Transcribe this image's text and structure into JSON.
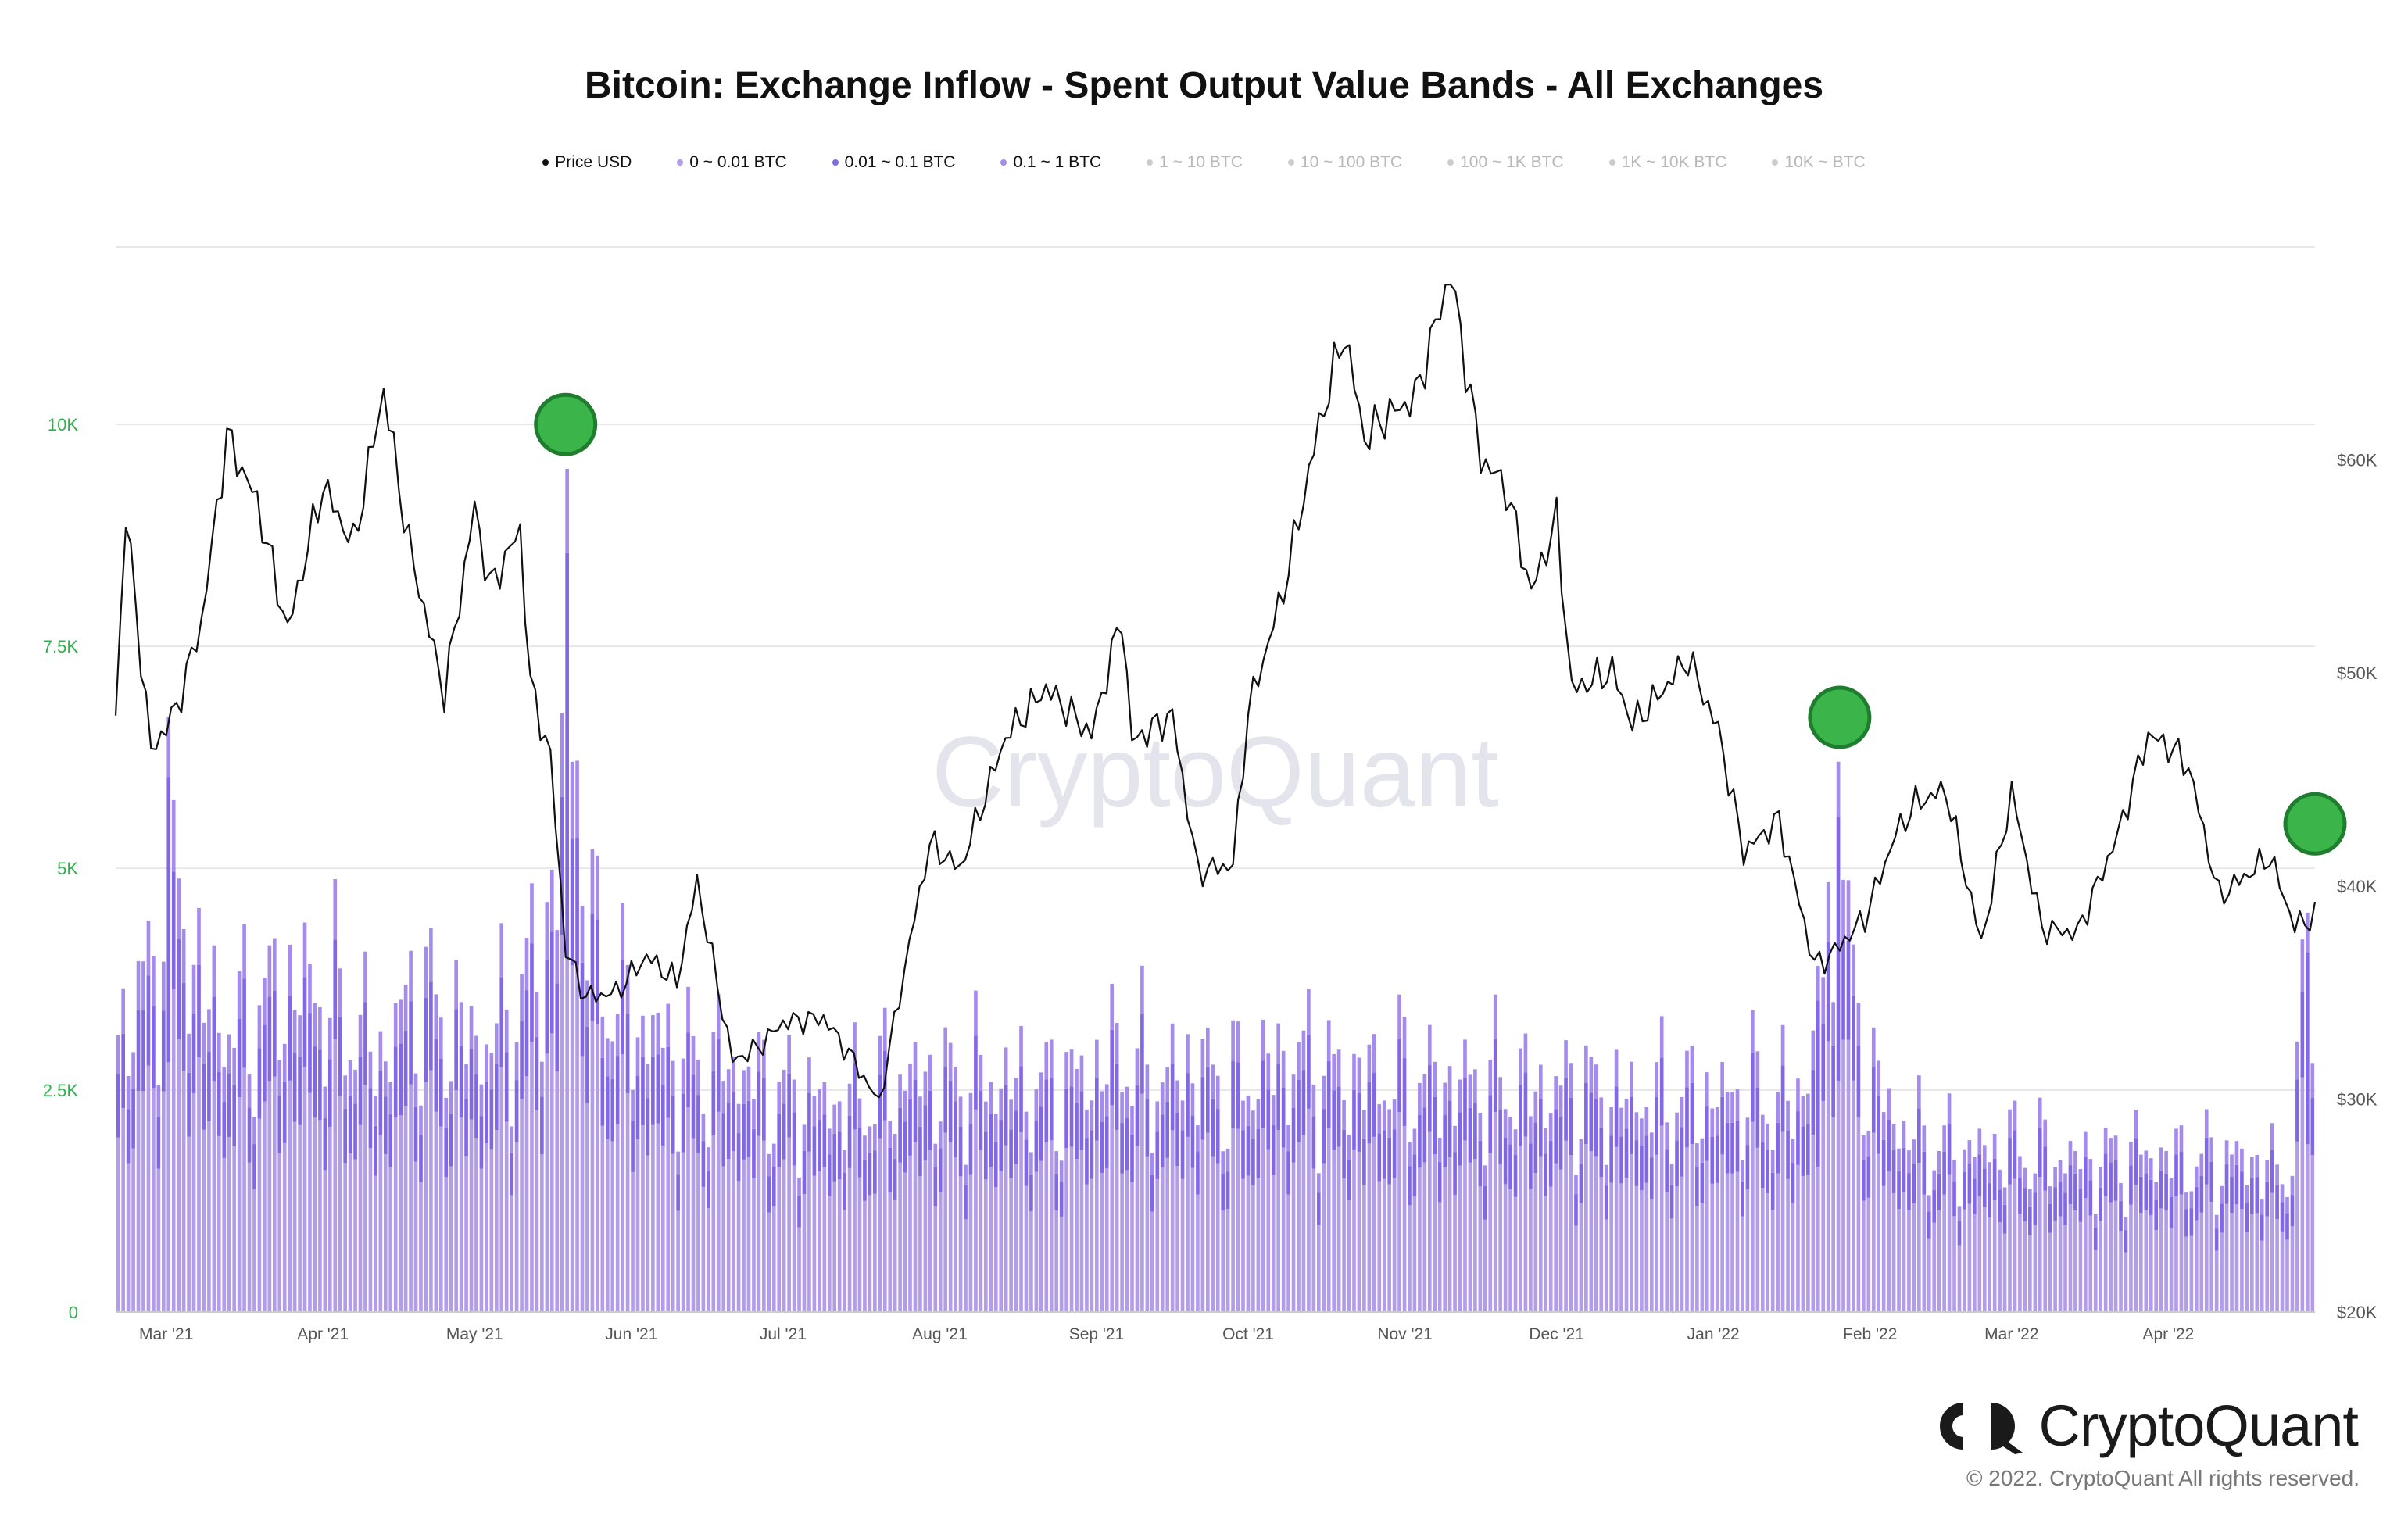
{
  "title": "Bitcoin: Exchange Inflow - Spent Output Value Bands - All Exchanges",
  "brand": {
    "name": "CryptoQuant",
    "watermark": "CryptoQuant",
    "copyright": "© 2022. CryptoQuant All rights reserved.",
    "logo_icon": "cryptoquant-logo-icon"
  },
  "colors": {
    "band_0": "#b39ce8",
    "band_1": "#8267e6",
    "band_2": "#a58bed",
    "price": "#111111",
    "left_axis": "#2fb24c",
    "right_axis": "#555555",
    "marker": "#3bb54a",
    "marker_stroke": "#1e7d2e",
    "grid": "#e8e8e8",
    "inactive": "#b8b8b8"
  },
  "legend": [
    {
      "label": "Price USD",
      "color": "#111111",
      "active": true
    },
    {
      "label": "0 ~ 0.01 BTC",
      "color": "#b39ce8",
      "active": true
    },
    {
      "label": "0.01 ~ 0.1 BTC",
      "color": "#8267e6",
      "active": true
    },
    {
      "label": "0.1 ~ 1 BTC",
      "color": "#a58bed",
      "active": true
    },
    {
      "label": "1 ~ 10 BTC",
      "color": "#c8c8c8",
      "active": false
    },
    {
      "label": "10 ~ 100 BTC",
      "color": "#c8c8c8",
      "active": false
    },
    {
      "label": "100 ~ 1K BTC",
      "color": "#c8c8c8",
      "active": false
    },
    {
      "label": "1K ~ 10K BTC",
      "color": "#c8c8c8",
      "active": false
    },
    {
      "label": "10K ~ BTC",
      "color": "#c8c8c8",
      "active": false
    }
  ],
  "chart_data": {
    "type": "bar",
    "stacked": true,
    "grid": true,
    "legend_position": "top-center",
    "x_range": [
      "2021-02-19",
      "2022-04-30"
    ],
    "x_ticks": [
      {
        "date": "2021-03-01",
        "label": "Mar '21"
      },
      {
        "date": "2021-04-01",
        "label": "Apr '21"
      },
      {
        "date": "2021-05-01",
        "label": "May '21"
      },
      {
        "date": "2021-06-01",
        "label": "Jun '21"
      },
      {
        "date": "2021-07-01",
        "label": "Jul '21"
      },
      {
        "date": "2021-08-01",
        "label": "Aug '21"
      },
      {
        "date": "2021-09-01",
        "label": "Sep '21"
      },
      {
        "date": "2021-10-01",
        "label": "Oct '21"
      },
      {
        "date": "2021-11-01",
        "label": "Nov '21"
      },
      {
        "date": "2021-12-01",
        "label": "Dec '21"
      },
      {
        "date": "2022-01-01",
        "label": "Jan '22"
      },
      {
        "date": "2022-02-01",
        "label": "Feb '22"
      },
      {
        "date": "2022-03-01",
        "label": "Mar '22"
      },
      {
        "date": "2022-04-01",
        "label": "Apr '22"
      }
    ],
    "y_left": {
      "range": [
        0,
        12000
      ],
      "ticks": [
        0,
        2500,
        5000,
        7500,
        10000
      ],
      "labels": [
        "0",
        "2.5K",
        "5K",
        "7.5K",
        "10K"
      ]
    },
    "y_right": {
      "range": [
        20000,
        70000
      ],
      "ticks": [
        20000,
        30000,
        40000,
        50000,
        60000
      ],
      "labels": [
        "$20K",
        "$30K",
        "$40K",
        "$50K",
        "$60K"
      ]
    },
    "bar_series": [
      "0 ~ 0.01 BTC",
      "0.01 ~ 0.1 BTC",
      "0.1 ~ 1 BTC"
    ],
    "inflow_totals_estimated": [
      [
        "2021-02-19",
        4000
      ],
      [
        "2021-02-26",
        4900
      ],
      [
        "2021-03-01",
        6700
      ],
      [
        "2021-03-08",
        4500
      ],
      [
        "2021-03-15",
        4100
      ],
      [
        "2021-03-22",
        4600
      ],
      [
        "2021-03-29",
        4700
      ],
      [
        "2021-04-05",
        4300
      ],
      [
        "2021-04-12",
        3700
      ],
      [
        "2021-04-19",
        4600
      ],
      [
        "2021-04-26",
        4100
      ],
      [
        "2021-05-03",
        3900
      ],
      [
        "2021-05-10",
        4500
      ],
      [
        "2021-05-17",
        6000
      ],
      [
        "2021-05-19",
        9500
      ],
      [
        "2021-05-24",
        5200
      ],
      [
        "2021-05-31",
        4300
      ],
      [
        "2021-06-07",
        3900
      ],
      [
        "2021-06-14",
        3500
      ],
      [
        "2021-06-21",
        3600
      ],
      [
        "2021-06-28",
        3200
      ],
      [
        "2021-07-05",
        3100
      ],
      [
        "2021-07-12",
        3000
      ],
      [
        "2021-07-19",
        3200
      ],
      [
        "2021-07-26",
        3400
      ],
      [
        "2021-08-02",
        3300
      ],
      [
        "2021-08-09",
        3400
      ],
      [
        "2021-08-16",
        3300
      ],
      [
        "2021-08-23",
        3200
      ],
      [
        "2021-08-30",
        3400
      ],
      [
        "2021-09-06",
        3800
      ],
      [
        "2021-09-13",
        3300
      ],
      [
        "2021-09-20",
        3600
      ],
      [
        "2021-09-27",
        3200
      ],
      [
        "2021-10-04",
        3500
      ],
      [
        "2021-10-11",
        3700
      ],
      [
        "2021-10-18",
        3400
      ],
      [
        "2021-10-25",
        3400
      ],
      [
        "2021-11-01",
        3400
      ],
      [
        "2021-11-08",
        3300
      ],
      [
        "2021-11-15",
        3300
      ],
      [
        "2021-11-22",
        3300
      ],
      [
        "2021-11-29",
        3200
      ],
      [
        "2021-12-06",
        3200
      ],
      [
        "2021-12-13",
        3100
      ],
      [
        "2021-12-20",
        3100
      ],
      [
        "2021-12-27",
        3100
      ],
      [
        "2022-01-03",
        3100
      ],
      [
        "2022-01-10",
        3200
      ],
      [
        "2022-01-17",
        3000
      ],
      [
        "2022-01-22",
        3900
      ],
      [
        "2022-01-26",
        6200
      ],
      [
        "2022-01-31",
        3600
      ],
      [
        "2022-02-07",
        2700
      ],
      [
        "2022-02-14",
        2400
      ],
      [
        "2022-02-21",
        2300
      ],
      [
        "2022-02-28",
        2400
      ],
      [
        "2022-03-07",
        2300
      ],
      [
        "2022-03-14",
        2200
      ],
      [
        "2022-03-21",
        2200
      ],
      [
        "2022-03-28",
        2300
      ],
      [
        "2022-04-04",
        2200
      ],
      [
        "2022-04-11",
        2200
      ],
      [
        "2022-04-18",
        2200
      ],
      [
        "2022-04-25",
        2000
      ],
      [
        "2022-04-29",
        4500
      ]
    ],
    "price_usd_estimated": [
      [
        "2021-02-19",
        48000
      ],
      [
        "2021-02-21",
        57500
      ],
      [
        "2021-02-26",
        46300
      ],
      [
        "2021-03-03",
        48300
      ],
      [
        "2021-03-08",
        52400
      ],
      [
        "2021-03-13",
        61100
      ],
      [
        "2021-03-19",
        58000
      ],
      [
        "2021-03-25",
        52000
      ],
      [
        "2021-04-01",
        58800
      ],
      [
        "2021-04-07",
        56000
      ],
      [
        "2021-04-13",
        63300
      ],
      [
        "2021-04-18",
        56000
      ],
      [
        "2021-04-25",
        49000
      ],
      [
        "2021-05-01",
        57800
      ],
      [
        "2021-05-04",
        54000
      ],
      [
        "2021-05-10",
        56700
      ],
      [
        "2021-05-12",
        49500
      ],
      [
        "2021-05-16",
        46000
      ],
      [
        "2021-05-19",
        37000
      ],
      [
        "2021-05-23",
        34800
      ],
      [
        "2021-05-29",
        35000
      ],
      [
        "2021-06-04",
        36700
      ],
      [
        "2021-06-10",
        35500
      ],
      [
        "2021-06-14",
        40200
      ],
      [
        "2021-06-21",
        31800
      ],
      [
        "2021-06-26",
        32400
      ],
      [
        "2021-07-01",
        33600
      ],
      [
        "2021-07-09",
        33800
      ],
      [
        "2021-07-15",
        31800
      ],
      [
        "2021-07-20",
        29800
      ],
      [
        "2021-07-26",
        37300
      ],
      [
        "2021-07-30",
        42000
      ],
      [
        "2021-08-05",
        40800
      ],
      [
        "2021-08-14",
        47000
      ],
      [
        "2021-08-22",
        49300
      ],
      [
        "2021-08-31",
        47100
      ],
      [
        "2021-09-06",
        52700
      ],
      [
        "2021-09-08",
        46800
      ],
      [
        "2021-09-16",
        48000
      ],
      [
        "2021-09-21",
        40700
      ],
      [
        "2021-09-28",
        41000
      ],
      [
        "2021-10-01",
        48200
      ],
      [
        "2021-10-08",
        53900
      ],
      [
        "2021-10-15",
        61600
      ],
      [
        "2021-10-20",
        66000
      ],
      [
        "2021-10-24",
        61000
      ],
      [
        "2021-10-28",
        62000
      ],
      [
        "2021-11-03",
        62900
      ],
      [
        "2021-11-10",
        68800
      ],
      [
        "2021-11-16",
        60100
      ],
      [
        "2021-11-21",
        58700
      ],
      [
        "2021-11-26",
        53800
      ],
      [
        "2021-12-01",
        57200
      ],
      [
        "2021-12-04",
        49200
      ],
      [
        "2021-12-12",
        50100
      ],
      [
        "2021-12-16",
        47600
      ],
      [
        "2021-12-21",
        48900
      ],
      [
        "2021-12-27",
        50700
      ],
      [
        "2022-01-02",
        47300
      ],
      [
        "2022-01-07",
        41600
      ],
      [
        "2022-01-14",
        43100
      ],
      [
        "2022-01-21",
        36300
      ],
      [
        "2022-01-24",
        36700
      ],
      [
        "2022-01-31",
        38500
      ],
      [
        "2022-02-06",
        42400
      ],
      [
        "2022-02-10",
        43900
      ],
      [
        "2022-02-16",
        44500
      ],
      [
        "2022-02-23",
        37300
      ],
      [
        "2022-03-01",
        44400
      ],
      [
        "2022-03-07",
        38000
      ],
      [
        "2022-03-14",
        37800
      ],
      [
        "2022-03-22",
        42400
      ],
      [
        "2022-03-28",
        47100
      ],
      [
        "2022-04-02",
        46400
      ],
      [
        "2022-04-05",
        45600
      ],
      [
        "2022-04-11",
        39500
      ],
      [
        "2022-04-18",
        40800
      ],
      [
        "2022-04-21",
        41400
      ],
      [
        "2022-04-26",
        38100
      ],
      [
        "2022-04-30",
        38600
      ]
    ],
    "markers": [
      {
        "date": "2021-05-19",
        "value": 10000
      },
      {
        "date": "2022-01-26",
        "value": 6700
      },
      {
        "date": "2022-04-30",
        "value": 5500
      }
    ]
  }
}
